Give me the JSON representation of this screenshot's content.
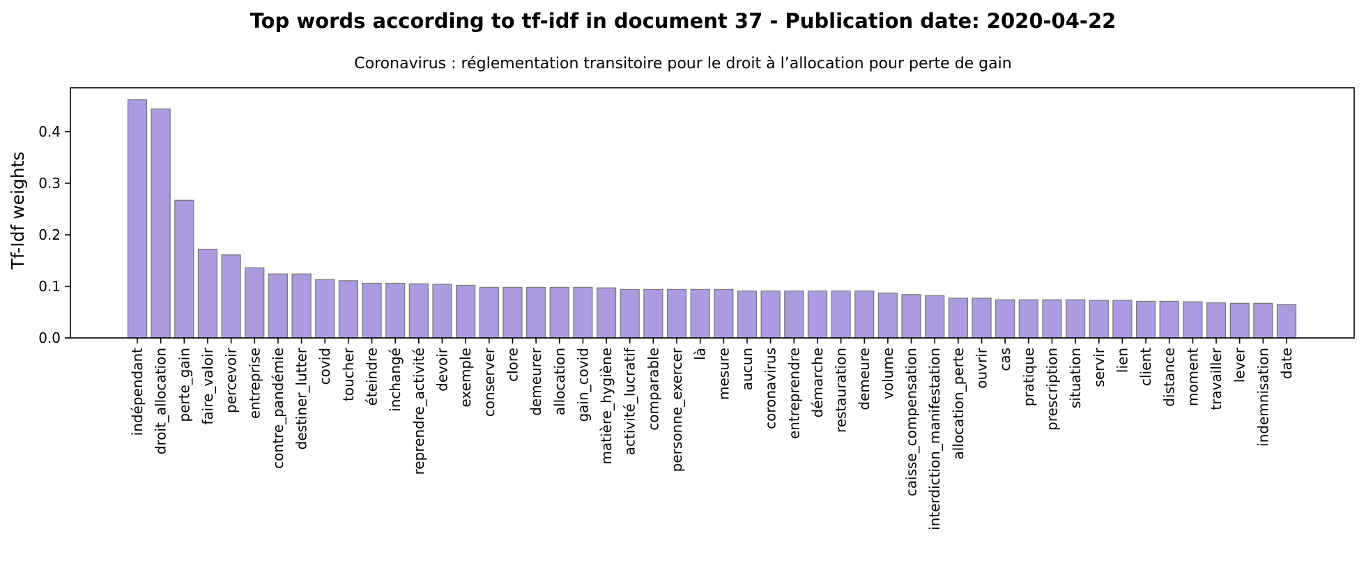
{
  "chart_data": {
    "type": "bar",
    "title": "Top words according to tf-idf in document 37 - Publication date: 2020-04-22",
    "subtitle": "Coronavirus : réglementation transitoire pour le droit à l’allocation pour perte de gain",
    "xlabel": "",
    "ylabel": "Tf-Idf weights",
    "ylim": [
      0,
      0.485
    ],
    "yticks": [
      0.0,
      0.1,
      0.2,
      0.3,
      0.4
    ],
    "ytick_labels": [
      "0.0",
      "0.1",
      "0.2",
      "0.3",
      "0.4"
    ],
    "grid": false,
    "bar_color": "#ab9be0",
    "bar_edge_color": "#7a7a7a",
    "categories": [
      "indépendant",
      "droit_allocation",
      "perte_gain",
      "faire_valoir",
      "percevoir",
      "entreprise",
      "contre_pandémie",
      "destiner_lutter",
      "covid",
      "toucher",
      "éteindre",
      "inchangé",
      "reprendre_activité",
      "devoir",
      "exemple",
      "conserver",
      "clore",
      "demeurer",
      "allocation",
      "gain_covid",
      "matière_hygiène",
      "activité_lucratif",
      "comparable",
      "personne_exercer",
      "là",
      "mesure",
      "aucun",
      "coronavirus",
      "entreprendre",
      "démarche",
      "restauration",
      "demeure",
      "volume",
      "caisse_compensation",
      "interdiction_manifestation",
      "allocation_perte",
      "ouvrir",
      "cas",
      "pratique",
      "prescription",
      "situation",
      "servir",
      "lien",
      "client",
      "distance",
      "moment",
      "travailler",
      "lever",
      "indemnisation",
      "date"
    ],
    "values": [
      0.462,
      0.444,
      0.267,
      0.172,
      0.161,
      0.136,
      0.124,
      0.124,
      0.113,
      0.111,
      0.106,
      0.106,
      0.105,
      0.104,
      0.102,
      0.098,
      0.098,
      0.098,
      0.098,
      0.098,
      0.097,
      0.094,
      0.094,
      0.094,
      0.094,
      0.094,
      0.091,
      0.091,
      0.091,
      0.091,
      0.091,
      0.091,
      0.087,
      0.084,
      0.082,
      0.077,
      0.077,
      0.074,
      0.074,
      0.074,
      0.074,
      0.073,
      0.073,
      0.071,
      0.071,
      0.07,
      0.068,
      0.067,
      0.067,
      0.065
    ]
  }
}
